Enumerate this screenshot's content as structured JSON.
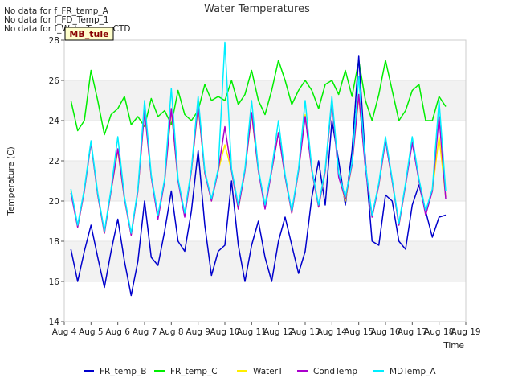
{
  "notes": [
    "No data for f_FR_temp_A",
    "No data for f_FD_Temp_1",
    "No data for f_WaterTemp_CTD"
  ],
  "tooltip_label": "MB_tule",
  "colors": {
    "FR_temp_B": "#0000cc",
    "FR_temp_C": "#00ee00",
    "WaterT": "#ffee00",
    "CondTemp": "#aa00cc",
    "MDTemp_A": "#00eeff",
    "band": "#f2f2f2",
    "tooltip_bg": "#ffffcc",
    "tooltip_text": "#880000"
  },
  "chart_data": {
    "type": "line",
    "title": "Water Temperatures",
    "xlabel": "Time",
    "ylabel": "Temperature (C)",
    "xlim": [
      "Aug 4",
      "Aug 19"
    ],
    "ylim": [
      14,
      28
    ],
    "x_ticks": [
      "Aug 4",
      "Aug 5",
      "Aug 6",
      "Aug 7",
      "Aug 8",
      "Aug 9",
      "Aug 10",
      "Aug 11",
      "Aug 12",
      "Aug 13",
      "Aug 14",
      "Aug 15",
      "Aug 16",
      "Aug 17",
      "Aug 18",
      "Aug 19"
    ],
    "y_ticks": [
      14,
      16,
      18,
      20,
      22,
      24,
      26,
      28
    ],
    "legend_position": "bottom",
    "x_days": [
      4.25,
      4.5,
      4.75,
      5.0,
      5.25,
      5.5,
      5.75,
      6.0,
      6.25,
      6.5,
      6.75,
      7.0,
      7.25,
      7.5,
      7.75,
      8.0,
      8.25,
      8.5,
      8.75,
      9.0,
      9.25,
      9.5,
      9.75,
      10.0,
      10.25,
      10.5,
      10.75,
      11.0,
      11.25,
      11.5,
      11.75,
      12.0,
      12.25,
      12.5,
      12.75,
      13.0,
      13.25,
      13.5,
      13.75,
      14.0,
      14.25,
      14.5,
      14.75,
      15.0,
      15.25,
      15.5,
      15.75,
      16.0,
      16.25,
      16.5,
      16.75,
      17.0,
      17.25,
      17.5,
      17.75,
      18.0,
      18.25
    ],
    "series": [
      {
        "name": "FR_temp_B",
        "values": [
          17.6,
          16.0,
          17.5,
          18.8,
          17.2,
          15.7,
          17.5,
          19.1,
          17.0,
          15.3,
          17.0,
          20.0,
          17.2,
          16.8,
          18.5,
          20.5,
          18.0,
          17.5,
          19.5,
          22.5,
          18.8,
          16.3,
          17.5,
          17.8,
          21.0,
          17.8,
          16.0,
          17.8,
          19.0,
          17.2,
          16.0,
          18.0,
          19.2,
          17.8,
          16.4,
          17.5,
          20.2,
          22.0,
          19.8,
          24.0,
          22.0,
          19.8,
          22.5,
          27.2,
          22.0,
          18.0,
          17.8,
          20.3,
          20.0,
          18.0,
          17.6,
          19.8,
          20.8,
          19.5,
          18.2,
          19.2,
          19.3
        ]
      },
      {
        "name": "FR_temp_C",
        "values": [
          25.0,
          23.5,
          24.0,
          26.5,
          25.0,
          23.3,
          24.3,
          24.6,
          25.2,
          23.8,
          24.2,
          23.7,
          25.1,
          24.2,
          24.5,
          23.8,
          25.5,
          24.3,
          24.0,
          24.5,
          25.8,
          25.0,
          25.2,
          25.0,
          26.0,
          24.8,
          25.3,
          26.5,
          25.0,
          24.3,
          25.5,
          27.0,
          26.0,
          24.8,
          25.5,
          26.0,
          25.5,
          24.6,
          25.8,
          26.0,
          25.3,
          26.5,
          25.2,
          27.0,
          25.0,
          24.0,
          25.3,
          27.0,
          25.5,
          24.0,
          24.5,
          25.5,
          25.8,
          24.0,
          24.0,
          25.2,
          24.7
        ]
      },
      {
        "name": "WaterT",
        "values": [
          20.5,
          18.7,
          20.5,
          22.9,
          20.3,
          18.4,
          20.5,
          22.5,
          20.1,
          18.3,
          20.5,
          24.5,
          21.2,
          19.2,
          21.0,
          24.5,
          21.0,
          19.3,
          21.5,
          24.7,
          21.4,
          20.0,
          21.5,
          22.8,
          21.5,
          19.6,
          21.5,
          24.3,
          21.5,
          19.7,
          21.5,
          23.4,
          21.2,
          19.4,
          21.5,
          24.3,
          21.5,
          19.7,
          21.5,
          25.0,
          21.3,
          20.0,
          21.8,
          25.2,
          21.7,
          19.2,
          20.8,
          23.0,
          21.0,
          18.8,
          20.8,
          23.0,
          21.0,
          19.4,
          20.5,
          23.2,
          20.2
        ]
      },
      {
        "name": "CondTemp",
        "values": [
          20.4,
          18.7,
          20.5,
          22.9,
          20.3,
          18.4,
          20.5,
          22.6,
          20.1,
          18.3,
          20.5,
          24.5,
          21.2,
          19.1,
          21.0,
          24.6,
          21.0,
          19.2,
          21.5,
          24.8,
          21.4,
          20.0,
          21.5,
          23.7,
          21.5,
          19.6,
          21.5,
          24.4,
          21.5,
          19.6,
          21.5,
          23.4,
          21.2,
          19.4,
          21.5,
          24.2,
          21.5,
          19.7,
          21.5,
          25.0,
          21.2,
          20.1,
          21.8,
          25.3,
          21.6,
          19.2,
          20.8,
          23.0,
          21.0,
          18.8,
          20.8,
          22.9,
          21.0,
          19.3,
          20.5,
          24.2,
          20.1
        ]
      },
      {
        "name": "MDTemp_A",
        "values": [
          20.6,
          18.8,
          20.6,
          23.0,
          20.4,
          18.5,
          20.6,
          23.2,
          20.2,
          18.4,
          20.6,
          25.0,
          21.3,
          19.3,
          21.1,
          25.6,
          21.1,
          19.4,
          21.6,
          25.2,
          21.5,
          20.1,
          21.6,
          27.9,
          21.6,
          19.8,
          21.6,
          25.0,
          21.6,
          19.8,
          21.6,
          24.0,
          21.3,
          19.5,
          21.6,
          25.0,
          21.6,
          19.8,
          21.6,
          25.2,
          21.4,
          20.2,
          21.9,
          26.2,
          21.8,
          19.3,
          20.9,
          23.2,
          21.1,
          18.9,
          20.9,
          23.2,
          21.1,
          19.5,
          20.6,
          25.0,
          20.5
        ]
      }
    ]
  }
}
